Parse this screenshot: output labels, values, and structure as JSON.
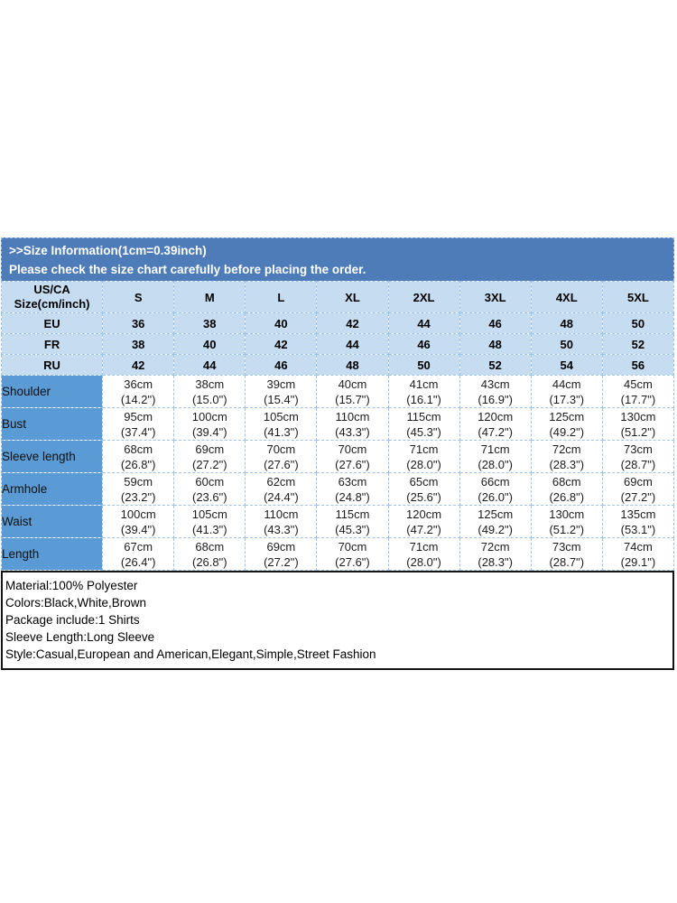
{
  "banner": {
    "line1": ">>Size Information(1cm=0.39inch)",
    "line2": "Please check the size chart carefully before placing the order."
  },
  "size_table": {
    "corner_line1": "US/CA",
    "corner_line2": "Size(cm/inch)",
    "sizes": [
      "S",
      "M",
      "L",
      "XL",
      "2XL",
      "3XL",
      "4XL",
      "5XL"
    ],
    "region_rows": [
      {
        "label": "EU",
        "values": [
          "36",
          "38",
          "40",
          "42",
          "44",
          "46",
          "48",
          "50"
        ]
      },
      {
        "label": "FR",
        "values": [
          "38",
          "40",
          "42",
          "44",
          "46",
          "48",
          "50",
          "52"
        ]
      },
      {
        "label": "RU",
        "values": [
          "42",
          "44",
          "46",
          "48",
          "50",
          "52",
          "54",
          "56"
        ]
      }
    ],
    "measurement_rows": [
      {
        "label": "Shoulder",
        "cm": [
          "36cm",
          "38cm",
          "39cm",
          "40cm",
          "41cm",
          "43cm",
          "44cm",
          "45cm"
        ],
        "inch": [
          "(14.2\")",
          "(15.0\")",
          "(15.4\")",
          "(15.7\")",
          "(16.1\")",
          "(16.9\")",
          "(17.3\")",
          "(17.7\")"
        ]
      },
      {
        "label": "Bust",
        "cm": [
          "95cm",
          "100cm",
          "105cm",
          "110cm",
          "115cm",
          "120cm",
          "125cm",
          "130cm"
        ],
        "inch": [
          "(37.4\")",
          "(39.4\")",
          "(41.3\")",
          "(43.3\")",
          "(45.3\")",
          "(47.2\")",
          "(49.2\")",
          "(51.2\")"
        ]
      },
      {
        "label": "Sleeve length",
        "cm": [
          "68cm",
          "69cm",
          "70cm",
          "70cm",
          "71cm",
          "71cm",
          "72cm",
          "73cm"
        ],
        "inch": [
          "(26.8\")",
          "(27.2\")",
          "(27.6\")",
          "(27.6\")",
          "(28.0\")",
          "(28.0\")",
          "(28.3\")",
          "(28.7\")"
        ]
      },
      {
        "label": "Armhole",
        "cm": [
          "59cm",
          "60cm",
          "62cm",
          "63cm",
          "65cm",
          "66cm",
          "68cm",
          "69cm"
        ],
        "inch": [
          "(23.2\")",
          "(23.6\")",
          "(24.4\")",
          "(24.8\")",
          "(25.6\")",
          "(26.0\")",
          "(26.8\")",
          "(27.2\")"
        ]
      },
      {
        "label": "Waist",
        "cm": [
          "100cm",
          "105cm",
          "110cm",
          "115cm",
          "120cm",
          "125cm",
          "130cm",
          "135cm"
        ],
        "inch": [
          "(39.4\")",
          "(41.3\")",
          "(43.3\")",
          "(45.3\")",
          "(47.2\")",
          "(49.2\")",
          "(51.2\")",
          "(53.1\")"
        ]
      },
      {
        "label": "Length",
        "cm": [
          "67cm",
          "68cm",
          "69cm",
          "70cm",
          "71cm",
          "72cm",
          "73cm",
          "74cm"
        ],
        "inch": [
          "(26.4\")",
          "(26.8\")",
          "(27.2\")",
          "(27.6\")",
          "(28.0\")",
          "(28.3\")",
          "(28.7\")",
          "(29.1\")"
        ]
      }
    ]
  },
  "details": {
    "lines": [
      "Material:100% Polyester",
      "Colors:Black,White,Brown",
      "Package include:1 Shirts",
      "Sleeve Length:Long Sleeve",
      "Style:Casual,European and American,Elegant,Simple,Street Fashion"
    ]
  },
  "colors": {
    "banner_blue": "#4d7cb8",
    "header_light_blue": "#c6dcf1",
    "label_column_blue": "#5b9bd5",
    "grid_dashed_blue": "#9dc3e6",
    "details_border": "#141414",
    "banner_text": "#ffffff"
  }
}
